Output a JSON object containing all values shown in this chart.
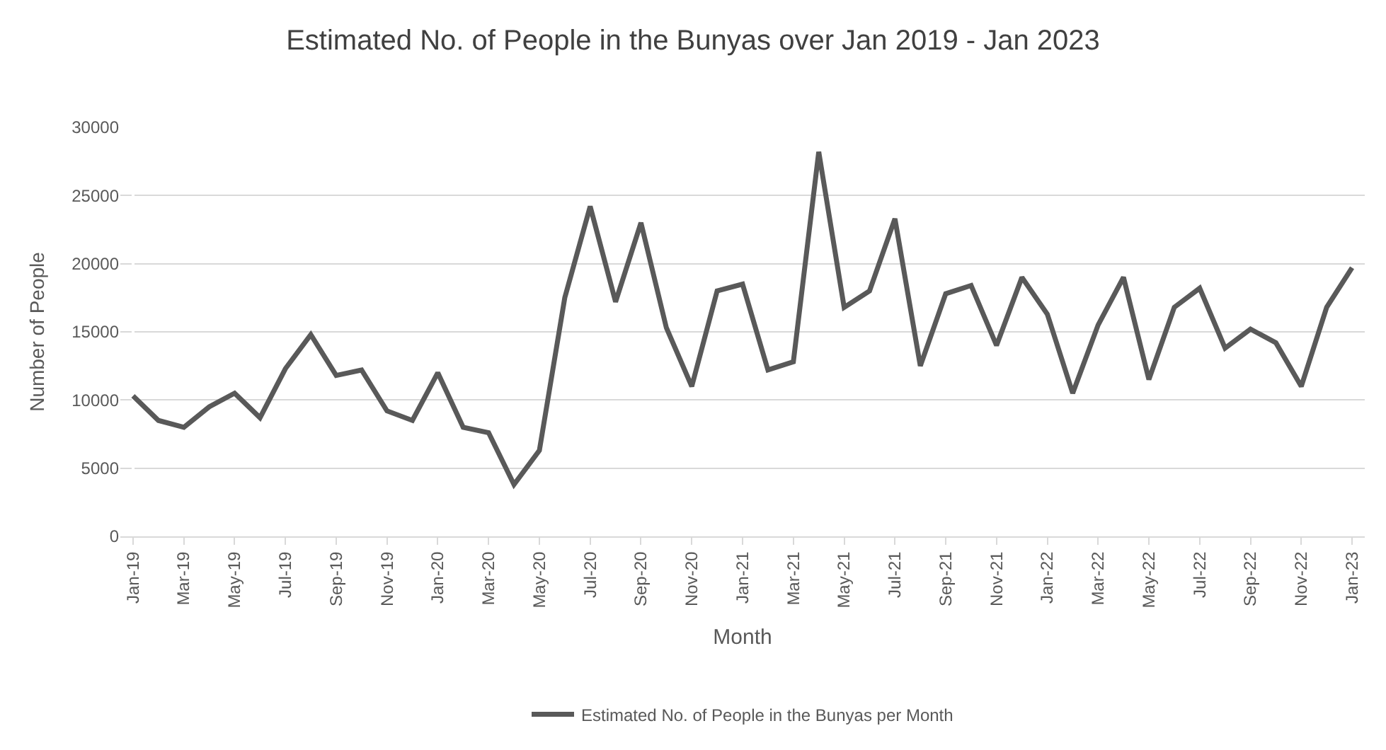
{
  "chart_data": {
    "type": "line",
    "title": "Estimated No. of People in the Bunyas over Jan 2019 - Jan 2023",
    "xlabel": "Month",
    "ylabel": "Number of People",
    "categories": [
      "Jan-19",
      null,
      "Mar-19",
      null,
      "May-19",
      null,
      "Jul-19",
      null,
      "Sep-19",
      null,
      "Nov-19",
      null,
      "Jan-20",
      null,
      "Mar-20",
      null,
      "May-20",
      null,
      "Jul-20",
      null,
      "Sep-20",
      null,
      "Nov-20",
      null,
      "Jan-21",
      null,
      "Mar-21",
      null,
      "May-21",
      null,
      "Jul-21",
      null,
      "Sep-21",
      null,
      "Nov-21",
      null,
      "Jan-22",
      null,
      "Mar-22",
      null,
      "May-22",
      null,
      "Jul-22",
      null,
      "Sep-22",
      null,
      "Nov-22",
      null,
      "Jan-23"
    ],
    "series": [
      {
        "name": "Estimated No. of People in the Bunyas per Month",
        "color": "#595959",
        "values": [
          10300,
          8500,
          8000,
          9500,
          10500,
          8700,
          12300,
          14800,
          11800,
          12200,
          9200,
          8500,
          12000,
          8000,
          7600,
          3800,
          6300,
          17500,
          24200,
          17200,
          23000,
          15300,
          11000,
          18000,
          18500,
          12200,
          12800,
          28200,
          16800,
          18000,
          23300,
          12500,
          17800,
          18400,
          14000,
          19000,
          16300,
          10500,
          15500,
          19000,
          11500,
          16800,
          18200,
          13800,
          15200,
          14200,
          11000,
          16800,
          19700
        ]
      }
    ],
    "ylim": [
      0,
      30000
    ],
    "yticks": [
      0,
      5000,
      10000,
      15000,
      20000,
      25000,
      30000
    ],
    "grid": "y",
    "legend": "bottom",
    "marker": "none",
    "line_style": "solid"
  }
}
